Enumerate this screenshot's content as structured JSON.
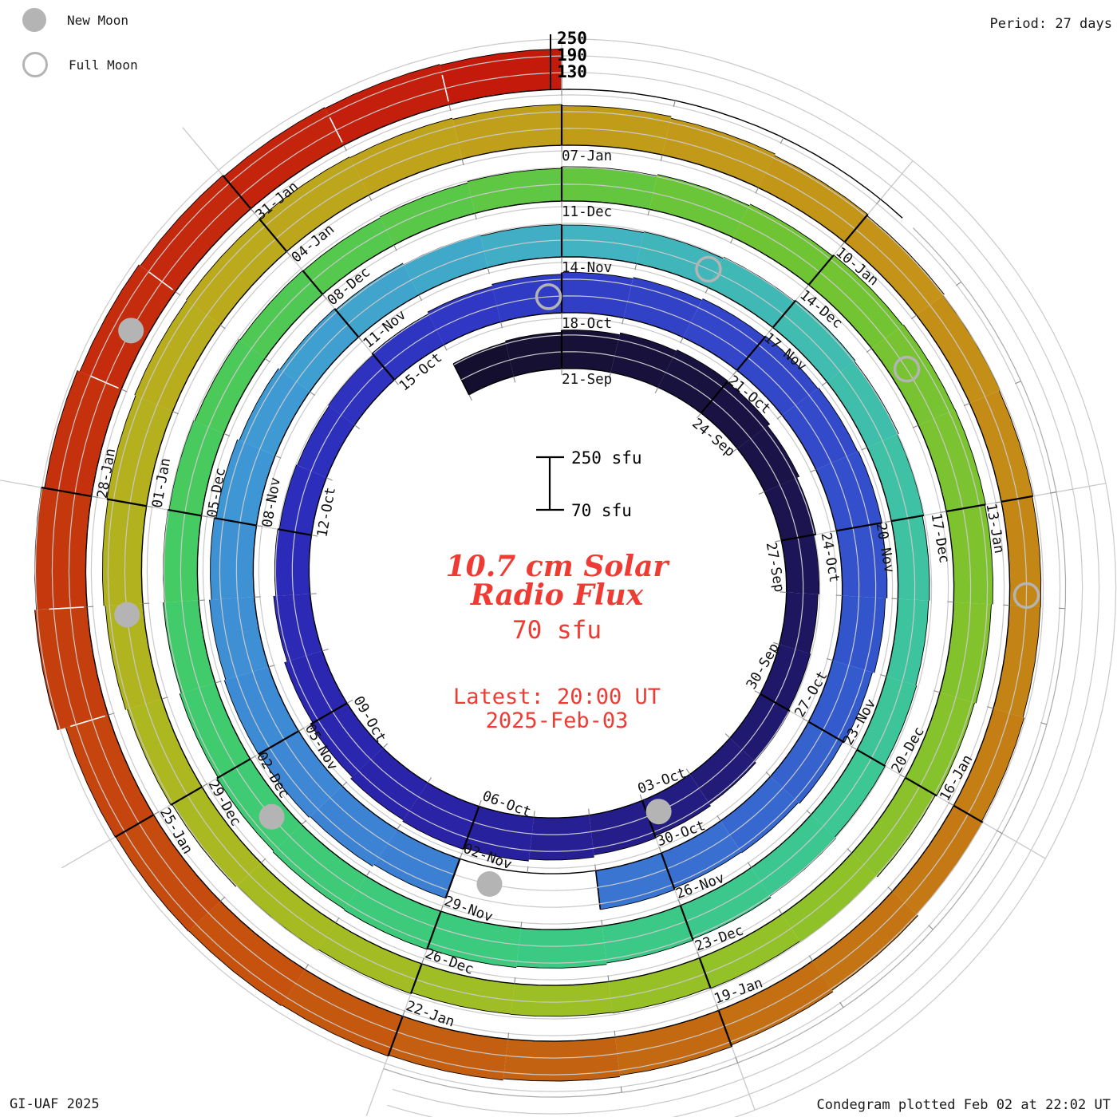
{
  "legend": {
    "new_moon": "New Moon",
    "full_moon": "Full Moon"
  },
  "header": {
    "period": "Period: 27 days"
  },
  "footer": {
    "credit": "GI-UAF 2025",
    "plotted": "Condegram plotted Feb 02 at 22:02 UT"
  },
  "center": {
    "title_line1": "10.7 cm Solar",
    "title_line2": "Radio Flux",
    "value": "70 sfu",
    "latest_line1": "Latest: 20:00 UT",
    "latest_line2": "2025-Feb-03"
  },
  "scale_bar": {
    "top_label": "250 sfu",
    "bottom_label": "70 sfu"
  },
  "radial_axis": {
    "tick_labels": [
      "250",
      "190",
      "130"
    ]
  },
  "colors": {
    "text_red": "#ee3b33",
    "grid_gray": "#c9c9c9",
    "moon_gray": "#b4b4b4",
    "label_black": "#111111",
    "baseline_black": "#000000"
  },
  "chart_data": {
    "type": "spiral_bar_condegram",
    "title": "10.7 cm Solar Radio Flux",
    "units": "sfu",
    "period_days": 27,
    "baseline_sfu": 70,
    "radial_gridlines_sfu": [
      130,
      190,
      250
    ],
    "start_date": "2024-09-19",
    "end_date": "2025-02-02",
    "label_every_days": 3,
    "date_labels": [
      "21-Sep",
      "24-Sep",
      "27-Sep",
      "30-Sep",
      "03-Oct",
      "06-Oct",
      "09-Oct",
      "12-Oct",
      "15-Oct",
      "18-Oct",
      "21-Oct",
      "24-Oct",
      "27-Oct",
      "30-Oct",
      "02-Nov",
      "05-Nov",
      "08-Nov",
      "11-Nov",
      "14-Nov",
      "17-Nov",
      "20-Nov",
      "23-Nov",
      "26-Nov",
      "29-Nov",
      "02-Dec",
      "05-Dec",
      "08-Dec",
      "11-Dec",
      "14-Dec",
      "17-Dec",
      "20-Dec",
      "23-Dec",
      "26-Dec",
      "29-Dec",
      "01-Jan",
      "04-Jan",
      "07-Jan",
      "10-Jan",
      "13-Jan",
      "16-Jan",
      "19-Jan",
      "22-Jan",
      "25-Jan",
      "28-Jan",
      "31-Jan"
    ],
    "daily_flux_sfu": [
      195,
      200,
      208,
      215,
      220,
      215,
      205,
      196,
      188,
      183,
      186,
      192,
      198,
      205,
      213,
      221,
      228,
      234,
      229,
      221,
      211,
      201,
      193,
      187,
      184,
      188,
      194,
      201,
      208,
      214,
      219,
      225,
      230,
      233,
      236,
      231,
      225,
      218,
      212,
      207,
      204,
      210,
      null,
      null,
      220,
      228,
      233,
      236,
      231,
      224,
      217,
      210,
      203,
      197,
      191,
      186,
      184,
      187,
      192,
      197,
      193,
      188,
      183,
      180,
      183,
      187,
      192,
      198,
      203,
      208,
      212,
      215,
      212,
      208,
      203,
      197,
      192,
      188,
      184,
      181,
      179,
      182,
      187,
      193,
      198,
      204,
      209,
      212,
      213,
      210,
      205,
      200,
      195,
      190,
      186,
      183,
      181,
      180,
      184,
      189,
      194,
      199,
      205,
      210,
      214,
      218,
      221,
      223,
      220,
      216,
      211,
      205,
      199,
      194,
      189,
      185,
      182,
      181,
      185,
      190,
      196,
      202,
      208,
      213,
      218,
      222,
      225,
      227,
      229,
      258,
      252,
      241,
      232,
      226,
      221,
      218,
      215
    ],
    "data_gap_dates": [
      "2024-10-31",
      "2024-11-01"
    ],
    "moons": {
      "new_moon_day_offsets": [
        13.8,
        43.5,
        73.3,
        102.9,
        132.5
      ],
      "new_moon_dates": [
        "2024-10-02",
        "2024-11-01",
        "2024-12-01",
        "2024-12-30",
        "2025-01-29"
      ],
      "full_moon_day_offsets": [
        28.8,
        57.9,
        87.4,
        116.9
      ],
      "full_moon_dates": [
        "2024-10-17",
        "2024-11-15",
        "2024-12-15",
        "2025-01-13"
      ]
    },
    "colormap_stops": [
      [
        0.0,
        "#150f2f"
      ],
      [
        0.045,
        "#1a1348"
      ],
      [
        0.09,
        "#221b7a"
      ],
      [
        0.125,
        "#2a23a6"
      ],
      [
        0.16,
        "#2c2ab8"
      ],
      [
        0.2,
        "#2f38c4"
      ],
      [
        0.23,
        "#3346c9"
      ],
      [
        0.265,
        "#3355cc"
      ],
      [
        0.3,
        "#3a74d2"
      ],
      [
        0.34,
        "#3d88d4"
      ],
      [
        0.375,
        "#3f9ad4"
      ],
      [
        0.41,
        "#41b2c2"
      ],
      [
        0.445,
        "#3fc0a8"
      ],
      [
        0.48,
        "#3cc794"
      ],
      [
        0.515,
        "#3cca7f"
      ],
      [
        0.55,
        "#40cb6b"
      ],
      [
        0.59,
        "#55c94d"
      ],
      [
        0.625,
        "#6fc434"
      ],
      [
        0.665,
        "#84c22c"
      ],
      [
        0.7,
        "#98c026"
      ],
      [
        0.735,
        "#aab921"
      ],
      [
        0.77,
        "#b7ae1d"
      ],
      [
        0.8,
        "#c0a01a"
      ],
      [
        0.835,
        "#c49117"
      ],
      [
        0.87,
        "#c47d14"
      ],
      [
        0.9,
        "#c36711"
      ],
      [
        0.93,
        "#c64f0e"
      ],
      [
        0.96,
        "#c5330d"
      ],
      [
        1.0,
        "#c31a0c"
      ]
    ]
  }
}
